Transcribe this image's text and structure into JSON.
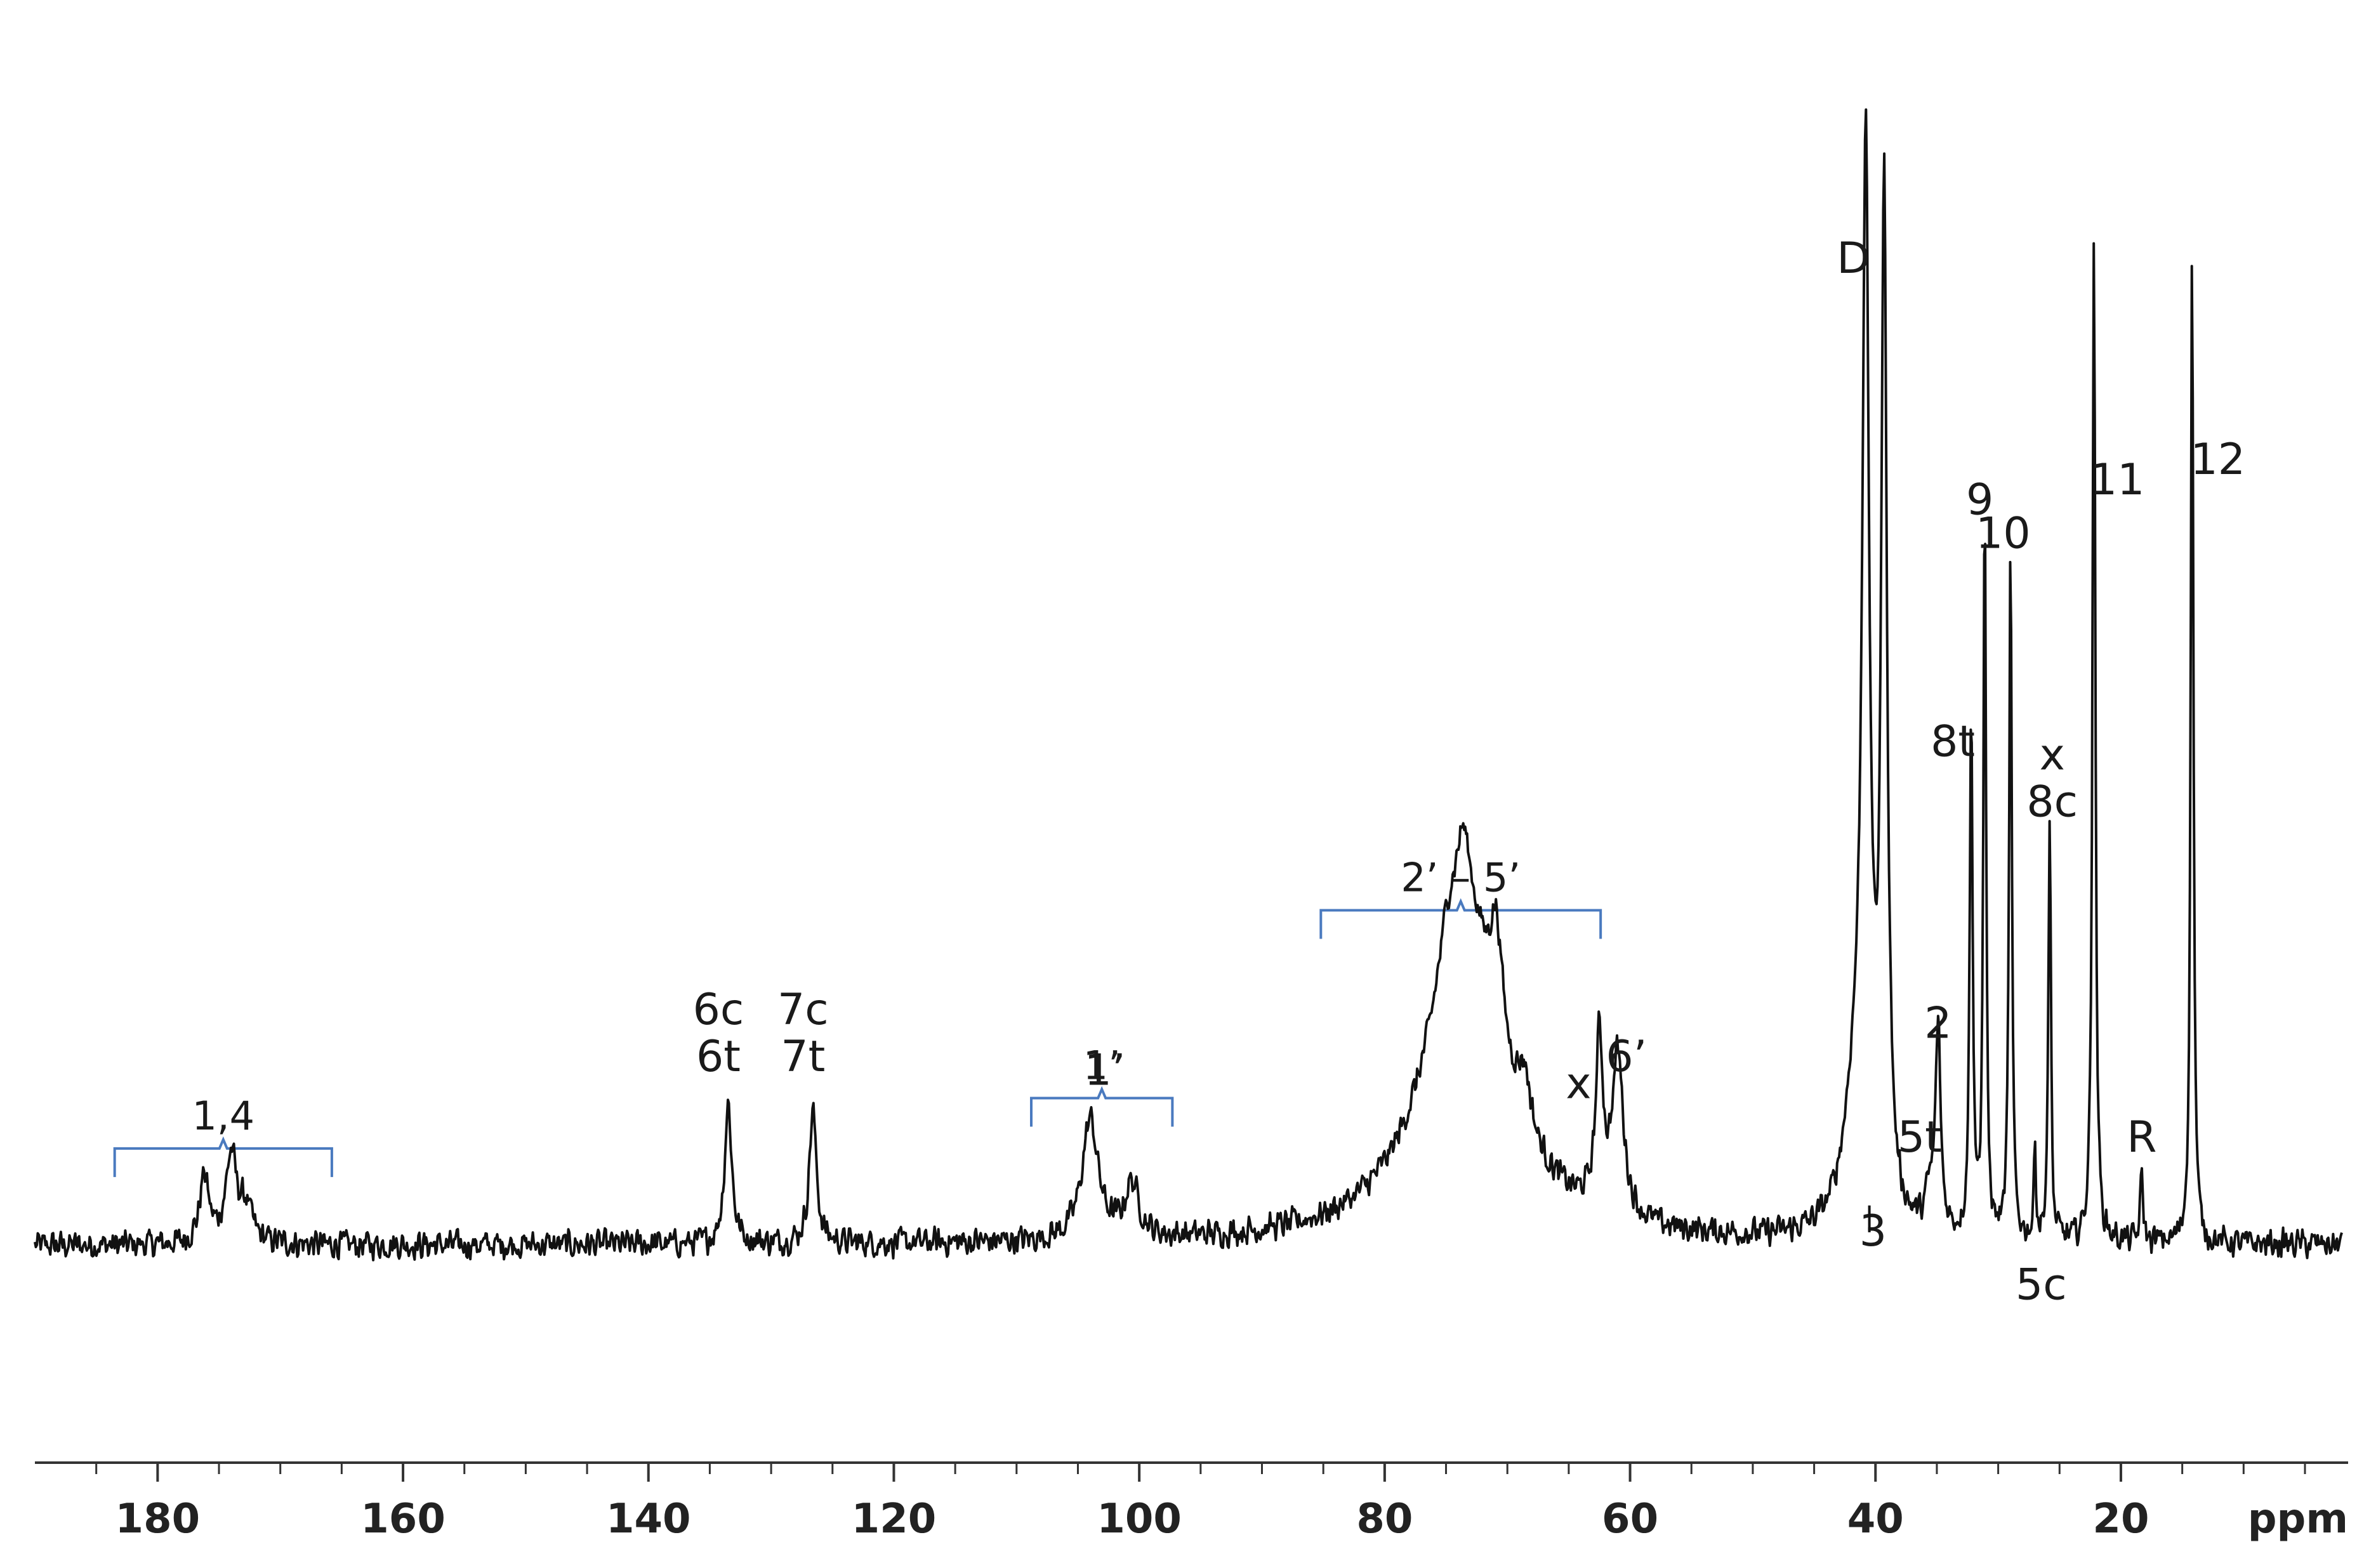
{
  "chart_data": {
    "type": "line",
    "title": "",
    "xlabel": "ppm",
    "ylabel": "",
    "x_reversed": true,
    "xlim": [
      190,
      2
    ],
    "ylim": [
      -0.12,
      1.8
    ],
    "grid": false,
    "x_ticks": [
      180,
      160,
      140,
      120,
      100,
      80,
      60,
      40,
      20
    ],
    "x_tick_labels": [
      "180",
      "160",
      "140",
      "120",
      "100",
      "80",
      "60",
      "40",
      "20"
    ],
    "baseline_noise": 0.025,
    "series": [
      {
        "peaks": [
          {
            "x": 176.2,
            "height": 0.1,
            "width": 0.45
          },
          {
            "x": 174.0,
            "height": 0.13,
            "width": 0.55
          },
          {
            "x": 172.8,
            "height": 0.05,
            "width": 0.6
          },
          {
            "x": 133.5,
            "height": 0.21,
            "width": 0.35
          },
          {
            "x": 126.6,
            "height": 0.2,
            "width": 0.35
          },
          {
            "x": 104.0,
            "height": 0.18,
            "width": 0.8
          },
          {
            "x": 100.6,
            "height": 0.08,
            "width": 0.7
          },
          {
            "x": 73.5,
            "height": 0.48,
            "width": 3.8
          },
          {
            "x": 73.6,
            "height": 0.12,
            "width": 0.7
          },
          {
            "x": 70.9,
            "height": 0.16,
            "width": 0.6
          },
          {
            "x": 68.6,
            "height": 0.08,
            "width": 0.6
          },
          {
            "x": 74.9,
            "height": 0.06,
            "width": 0.8
          },
          {
            "x": 62.5,
            "height": 0.25,
            "width": 0.35
          },
          {
            "x": 61.0,
            "height": 0.24,
            "width": 0.55
          },
          {
            "x": 40.8,
            "height": 1.5,
            "width": 0.32
          },
          {
            "x": 39.3,
            "height": 1.5,
            "width": 0.28
          },
          {
            "x": 41.6,
            "height": 0.2,
            "width": 1.2
          },
          {
            "x": 40.3,
            "height": 0.04,
            "width": 0.15
          },
          {
            "x": 35.6,
            "height": 0.05,
            "width": 0.4
          },
          {
            "x": 34.9,
            "height": 0.3,
            "width": 0.25
          },
          {
            "x": 32.2,
            "height": 0.8,
            "width": 0.14
          },
          {
            "x": 31.1,
            "height": 1.1,
            "width": 0.13
          },
          {
            "x": 29.0,
            "height": 1.04,
            "width": 0.13
          },
          {
            "x": 27.0,
            "height": 0.22,
            "width": 0.1
          },
          {
            "x": 25.8,
            "height": 0.62,
            "width": 0.13
          },
          {
            "x": 22.2,
            "height": 1.5,
            "width": 0.14
          },
          {
            "x": 18.3,
            "height": 0.1,
            "width": 0.14
          },
          {
            "x": 14.2,
            "height": 1.5,
            "width": 0.13
          }
        ],
        "dips": [
          {
            "x": 27.0,
            "depth": 0.07,
            "width": 0.12
          },
          {
            "x": 25.5,
            "depth": 0.03,
            "width": 0.12
          }
        ]
      }
    ],
    "peak_labels": [
      {
        "text": "D",
        "x": 41.8,
        "y": 1.45
      },
      {
        "text": "12",
        "x": 12.1,
        "y": 1.15
      },
      {
        "text": "11",
        "x": 20.3,
        "y": 1.12
      },
      {
        "text": "9",
        "x": 31.5,
        "y": 1.09
      },
      {
        "text": "10",
        "x": 29.6,
        "y": 1.04
      },
      {
        "text": "8t",
        "x": 33.7,
        "y": 0.73
      },
      {
        "text": "x",
        "x": 25.6,
        "y": 0.71
      },
      {
        "text": "8c",
        "x": 25.6,
        "y": 0.64
      },
      {
        "text": "2",
        "x": 34.9,
        "y": 0.31
      },
      {
        "text": "5t",
        "x": 36.4,
        "y": 0.14
      },
      {
        "text": "3",
        "x": 40.2,
        "y": 0.0
      },
      {
        "text": "5c",
        "x": 26.5,
        "y": -0.08
      },
      {
        "text": "R",
        "x": 18.3,
        "y": 0.14
      },
      {
        "text": "x",
        "x": 64.2,
        "y": 0.22
      },
      {
        "text": "6’",
        "x": 60.3,
        "y": 0.26
      },
      {
        "text": "6c",
        "x": 134.3,
        "y": 0.33
      },
      {
        "text": "6t",
        "x": 134.3,
        "y": 0.26
      },
      {
        "text": "7c",
        "x": 127.4,
        "y": 0.33
      },
      {
        "text": "7t",
        "x": 127.4,
        "y": 0.26
      },
      {
        "text": "1’",
        "x": 102.8,
        "y": 0.24
      }
    ],
    "brackets": [
      {
        "label": "1,4",
        "from": 183.5,
        "to": 165.8,
        "y": 0.145
      },
      {
        "label": "1’",
        "from": 108.8,
        "to": 97.3,
        "y": 0.22
      },
      {
        "label": "2’ – 5’",
        "from": 85.2,
        "to": 62.4,
        "y": 0.5
      }
    ],
    "colors": {
      "trace": "#111111",
      "bracket": "#4a7abf",
      "axis": "#333333"
    }
  }
}
